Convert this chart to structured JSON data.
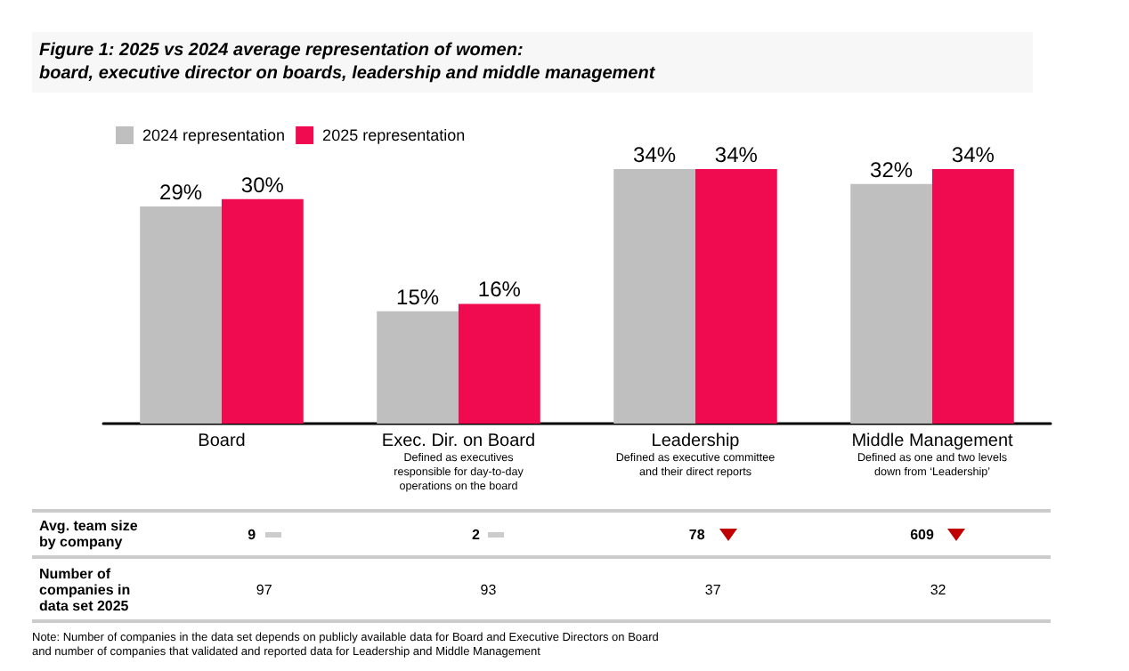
{
  "chart_data": {
    "type": "bar",
    "title": "Figure 1:  2025 vs 2024 average representation of women:\nboard, executive director on boards, leadership and middle management",
    "categories": [
      "Board",
      "Exec. Dir. on Board",
      "Leadership",
      "Middle Management"
    ],
    "series": [
      {
        "name": "2024 representation",
        "color": "#bfbfbf",
        "values": [
          29,
          15,
          34,
          32
        ],
        "value_labels": [
          "29%",
          "15%",
          "34%",
          "32%"
        ]
      },
      {
        "name": "2025 representation",
        "color": "#f00a50",
        "values": [
          30,
          16,
          34,
          34
        ],
        "value_labels": [
          "30%",
          "16%",
          "34%",
          "34%"
        ]
      }
    ],
    "legend": "top left",
    "annotations": [
      "Defined as executives responsible for day-to-day operations on the board",
      "Defined as executive committee and their direct reports",
      "Defined as one and two levels down from ‘Leadership’",
      "Avg. team size by company",
      "9",
      "2",
      "78",
      "609",
      "Number of companies in data set 2025",
      "97",
      "93",
      "37",
      "32",
      "Note: Number of companies in the data set depends on publicly available data for Board and Executive Directors on Board\nand number of companies that validated and reported data for Leadership and Middle Management"
    ]
  }
}
